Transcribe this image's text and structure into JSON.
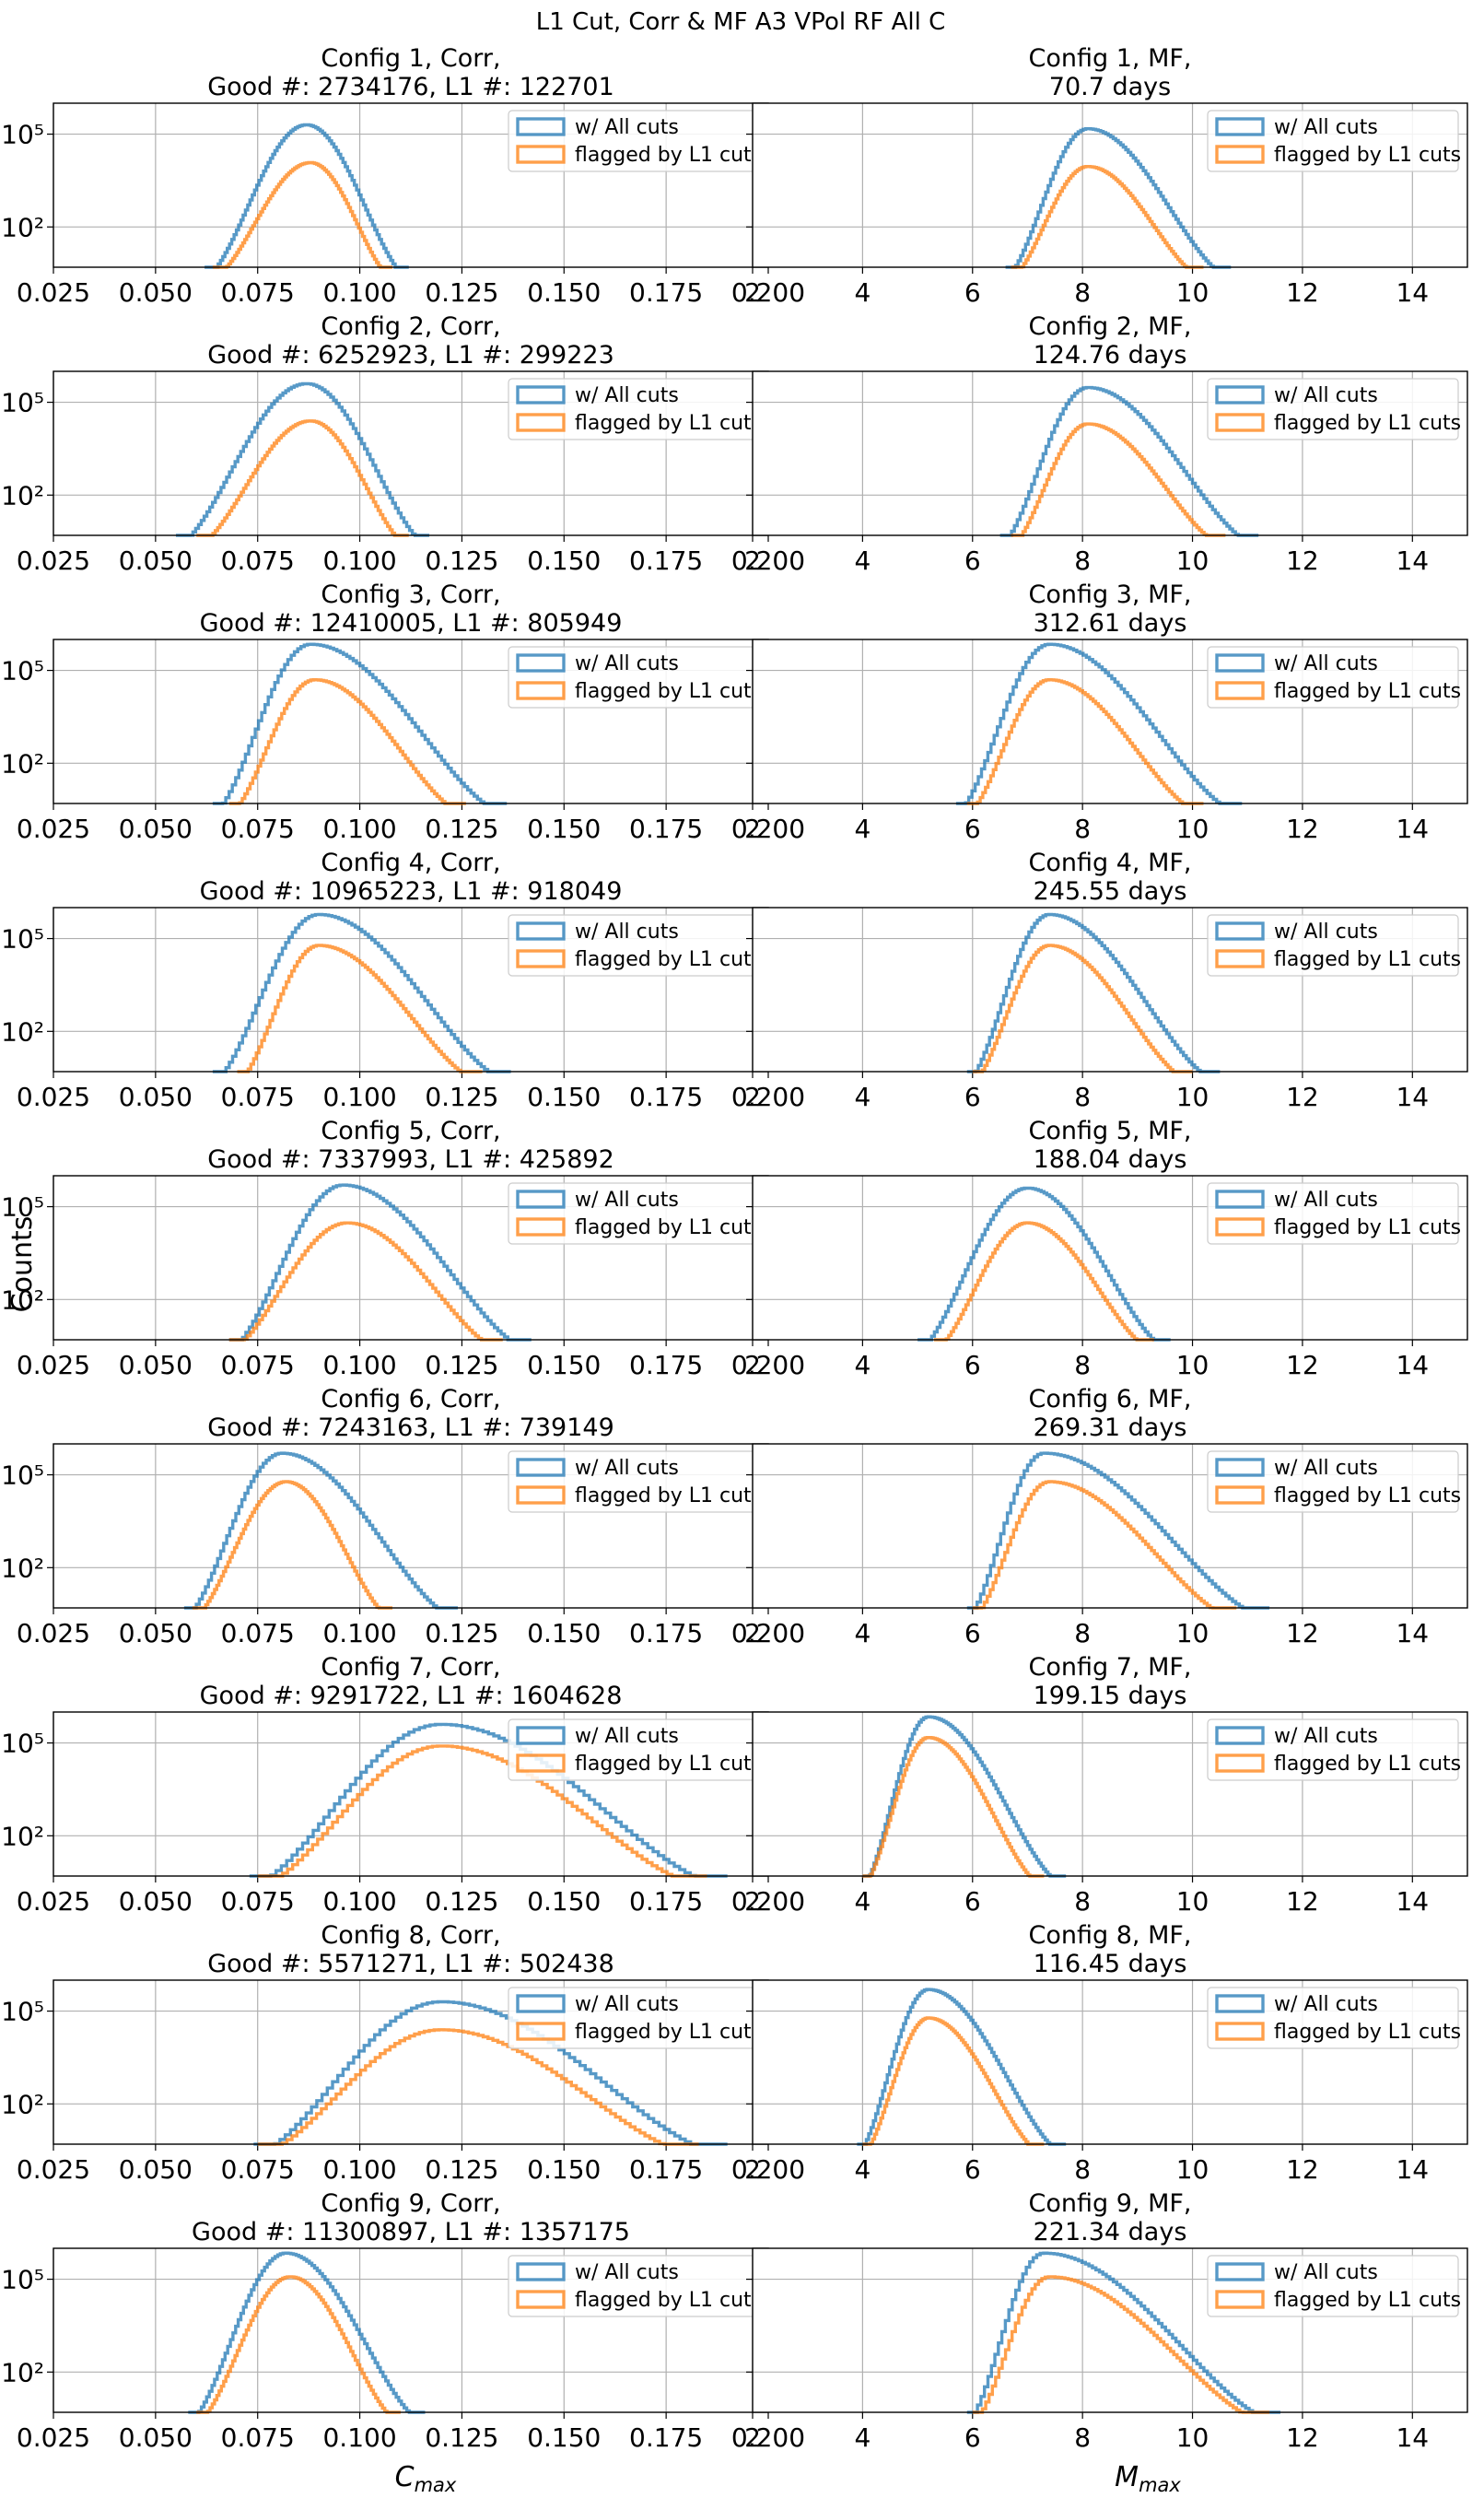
{
  "figure": {
    "suptitle": "L1 Cut, Corr & MF A3 VPol RF All C",
    "ylabel": "Counts",
    "xlabel_left": "C",
    "xlabel_left_sub": "max",
    "xlabel_right": "M",
    "xlabel_right_sub": "max"
  },
  "legend": [
    "w/ All cuts",
    "flagged by L1 cuts"
  ],
  "colors": {
    "all_cuts": "#1f77b4",
    "l1": "#ff7f0e"
  },
  "chart_data": [
    {
      "type": "line",
      "panel": "Config 1 Corr",
      "title_line1": "Config 1, Corr,",
      "title_line2": "Good #: 2734176, L1 #: 122701",
      "xlim": [
        0.025,
        0.2
      ],
      "xticks": [
        "0.025",
        "0.050",
        "0.075",
        "0.100",
        "0.125",
        "0.150",
        "0.175",
        "0.200"
      ],
      "yscale": "log",
      "ylim": [
        5,
        1000000
      ],
      "yticks": [
        "10²",
        "10⁵"
      ],
      "grid": true,
      "legend_position": "upper-right",
      "series": [
        {
          "name": "w/ All cuts",
          "peak_x": 0.087,
          "peak_y": 200000,
          "x_min": 0.062,
          "x_max": 0.112
        },
        {
          "name": "flagged by L1 cuts",
          "peak_x": 0.088,
          "peak_y": 12000,
          "x_min": 0.064,
          "x_max": 0.108
        }
      ]
    },
    {
      "type": "line",
      "panel": "Config 1 MF",
      "title_line1": "Config 1, MF,",
      "title_line2": "70.7 days",
      "xlim": [
        2,
        15
      ],
      "xticks": [
        "2",
        "4",
        "6",
        "8",
        "10",
        "12",
        "14"
      ],
      "yscale": "log",
      "ylim": [
        5,
        1000000
      ],
      "yticks": [],
      "grid": true,
      "legend_position": "upper-right",
      "series": [
        {
          "name": "w/ All cuts",
          "peak_x": 8.1,
          "peak_y": 150000,
          "x_min": 6.6,
          "x_max": 10.7
        },
        {
          "name": "flagged by L1 cuts",
          "peak_x": 8.1,
          "peak_y": 9000,
          "x_min": 6.7,
          "x_max": 10.2
        }
      ]
    },
    {
      "type": "line",
      "panel": "Config 2 Corr",
      "title_line1": "Config 2, Corr,",
      "title_line2": "Good #: 6252923, L1 #: 299223",
      "xlim": [
        0.025,
        0.2
      ],
      "xticks": [
        "0.025",
        "0.050",
        "0.075",
        "0.100",
        "0.125",
        "0.150",
        "0.175",
        "0.200"
      ],
      "yscale": "log",
      "ylim": [
        5,
        1000000
      ],
      "yticks": [
        "10²",
        "10⁵"
      ],
      "grid": true,
      "legend_position": "upper-right",
      "series": [
        {
          "name": "w/ All cuts",
          "peak_x": 0.087,
          "peak_y": 400000,
          "x_min": 0.055,
          "x_max": 0.117
        },
        {
          "name": "flagged by L1 cuts",
          "peak_x": 0.088,
          "peak_y": 25000,
          "x_min": 0.06,
          "x_max": 0.112
        }
      ]
    },
    {
      "type": "line",
      "panel": "Config 2 MF",
      "title_line1": "Config 2, MF,",
      "title_line2": "124.76 days",
      "xlim": [
        2,
        15
      ],
      "xticks": [
        "2",
        "4",
        "6",
        "8",
        "10",
        "12",
        "14"
      ],
      "yscale": "log",
      "ylim": [
        5,
        1000000
      ],
      "yticks": [],
      "grid": true,
      "legend_position": "upper-right",
      "series": [
        {
          "name": "w/ All cuts",
          "peak_x": 8.1,
          "peak_y": 300000,
          "x_min": 6.5,
          "x_max": 11.2
        },
        {
          "name": "flagged by L1 cuts",
          "peak_x": 8.1,
          "peak_y": 20000,
          "x_min": 6.7,
          "x_max": 10.6
        }
      ]
    },
    {
      "type": "line",
      "panel": "Config 3 Corr",
      "title_line1": "Config 3, Corr,",
      "title_line2": "Good #: 12410005, L1 #: 805949",
      "xlim": [
        0.025,
        0.2
      ],
      "xticks": [
        "0.025",
        "0.050",
        "0.075",
        "0.100",
        "0.125",
        "0.150",
        "0.175",
        "0.200"
      ],
      "yscale": "log",
      "ylim": [
        5,
        1000000
      ],
      "yticks": [
        "10²",
        "10⁵"
      ],
      "grid": true,
      "legend_position": "upper-right",
      "series": [
        {
          "name": "w/ All cuts",
          "peak_x": 0.088,
          "peak_y": 700000,
          "x_min": 0.064,
          "x_max": 0.136
        },
        {
          "name": "flagged by L1 cuts",
          "peak_x": 0.089,
          "peak_y": 50000,
          "x_min": 0.068,
          "x_max": 0.126
        }
      ]
    },
    {
      "type": "line",
      "panel": "Config 3 MF",
      "title_line1": "Config 3, MF,",
      "title_line2": "312.61 days",
      "xlim": [
        2,
        15
      ],
      "xticks": [
        "2",
        "4",
        "6",
        "8",
        "10",
        "12",
        "14"
      ],
      "yscale": "log",
      "ylim": [
        5,
        1000000
      ],
      "yticks": [],
      "grid": true,
      "legend_position": "upper-right",
      "series": [
        {
          "name": "w/ All cuts",
          "peak_x": 7.4,
          "peak_y": 700000,
          "x_min": 5.7,
          "x_max": 10.9
        },
        {
          "name": "flagged by L1 cuts",
          "peak_x": 7.4,
          "peak_y": 50000,
          "x_min": 5.9,
          "x_max": 10.2
        }
      ]
    },
    {
      "type": "line",
      "panel": "Config 4 Corr",
      "title_line1": "Config 4, Corr,",
      "title_line2": "Good #: 10965223, L1 #: 918049",
      "xlim": [
        0.025,
        0.2
      ],
      "xticks": [
        "0.025",
        "0.050",
        "0.075",
        "0.100",
        "0.125",
        "0.150",
        "0.175",
        "0.200"
      ],
      "yscale": "log",
      "ylim": [
        5,
        1000000
      ],
      "yticks": [
        "10²",
        "10⁵"
      ],
      "grid": true,
      "legend_position": "upper-right",
      "series": [
        {
          "name": "w/ All cuts",
          "peak_x": 0.09,
          "peak_y": 600000,
          "x_min": 0.064,
          "x_max": 0.137
        },
        {
          "name": "flagged by L1 cuts",
          "peak_x": 0.09,
          "peak_y": 60000,
          "x_min": 0.07,
          "x_max": 0.13
        }
      ]
    },
    {
      "type": "line",
      "panel": "Config 4 MF",
      "title_line1": "Config 4, MF,",
      "title_line2": "245.55 days",
      "xlim": [
        2,
        15
      ],
      "xticks": [
        "2",
        "4",
        "6",
        "8",
        "10",
        "12",
        "14"
      ],
      "yscale": "log",
      "ylim": [
        5,
        1000000
      ],
      "yticks": [],
      "grid": true,
      "legend_position": "upper-right",
      "series": [
        {
          "name": "w/ All cuts",
          "peak_x": 7.4,
          "peak_y": 600000,
          "x_min": 5.9,
          "x_max": 10.5
        },
        {
          "name": "flagged by L1 cuts",
          "peak_x": 7.4,
          "peak_y": 60000,
          "x_min": 6.0,
          "x_max": 10.0
        }
      ]
    },
    {
      "type": "line",
      "panel": "Config 5 Corr",
      "title_line1": "Config 5, Corr,",
      "title_line2": "Good #: 7337993, L1 #: 425892",
      "xlim": [
        0.025,
        0.2
      ],
      "xticks": [
        "0.025",
        "0.050",
        "0.075",
        "0.100",
        "0.125",
        "0.150",
        "0.175",
        "0.200"
      ],
      "yscale": "log",
      "ylim": [
        5,
        1000000
      ],
      "yticks": [
        "10²",
        "10⁵"
      ],
      "grid": true,
      "legend_position": "upper-right",
      "series": [
        {
          "name": "w/ All cuts",
          "peak_x": 0.096,
          "peak_y": 500000,
          "x_min": 0.068,
          "x_max": 0.142
        },
        {
          "name": "flagged by L1 cuts",
          "peak_x": 0.097,
          "peak_y": 30000,
          "x_min": 0.068,
          "x_max": 0.135
        }
      ]
    },
    {
      "type": "line",
      "panel": "Config 5 MF",
      "title_line1": "Config 5, MF,",
      "title_line2": "188.04 days",
      "xlim": [
        2,
        15
      ],
      "xticks": [
        "2",
        "4",
        "6",
        "8",
        "10",
        "12",
        "14"
      ],
      "yscale": "log",
      "ylim": [
        5,
        1000000
      ],
      "yticks": [],
      "grid": true,
      "legend_position": "upper-right",
      "series": [
        {
          "name": "w/ All cuts",
          "peak_x": 7.0,
          "peak_y": 400000,
          "x_min": 5.0,
          "x_max": 9.6
        },
        {
          "name": "flagged by L1 cuts",
          "peak_x": 7.0,
          "peak_y": 30000,
          "x_min": 5.3,
          "x_max": 9.3
        }
      ]
    },
    {
      "type": "line",
      "panel": "Config 6 Corr",
      "title_line1": "Config 6, Corr,",
      "title_line2": "Good #: 7243163, L1 #: 739149",
      "xlim": [
        0.025,
        0.2
      ],
      "xticks": [
        "0.025",
        "0.050",
        "0.075",
        "0.100",
        "0.125",
        "0.150",
        "0.175",
        "0.200"
      ],
      "yscale": "log",
      "ylim": [
        5,
        1000000
      ],
      "yticks": [
        "10²",
        "10⁵"
      ],
      "grid": true,
      "legend_position": "upper-right",
      "series": [
        {
          "name": "w/ All cuts",
          "peak_x": 0.081,
          "peak_y": 500000,
          "x_min": 0.057,
          "x_max": 0.124
        },
        {
          "name": "flagged by L1 cuts",
          "peak_x": 0.082,
          "peak_y": 60000,
          "x_min": 0.059,
          "x_max": 0.108
        }
      ]
    },
    {
      "type": "line",
      "panel": "Config 6 MF",
      "title_line1": "Config 6, MF,",
      "title_line2": "269.31 days",
      "xlim": [
        2,
        15
      ],
      "xticks": [
        "2",
        "4",
        "6",
        "8",
        "10",
        "12",
        "14"
      ],
      "yscale": "log",
      "ylim": [
        5,
        1000000
      ],
      "yticks": [],
      "grid": true,
      "legend_position": "upper-right",
      "series": [
        {
          "name": "w/ All cuts",
          "peak_x": 7.3,
          "peak_y": 500000,
          "x_min": 5.9,
          "x_max": 11.4
        },
        {
          "name": "flagged by L1 cuts",
          "peak_x": 7.4,
          "peak_y": 60000,
          "x_min": 6.0,
          "x_max": 10.8
        }
      ]
    },
    {
      "type": "line",
      "panel": "Config 7 Corr",
      "title_line1": "Config 7, Corr,",
      "title_line2": "Good #: 9291722, L1 #: 1604628",
      "xlim": [
        0.025,
        0.2
      ],
      "xticks": [
        "0.025",
        "0.050",
        "0.075",
        "0.100",
        "0.125",
        "0.150",
        "0.175",
        "0.200"
      ],
      "yscale": "log",
      "ylim": [
        5,
        1000000
      ],
      "yticks": [
        "10²",
        "10⁵"
      ],
      "grid": true,
      "legend_position": "upper-right",
      "series": [
        {
          "name": "w/ All cuts",
          "peak_x": 0.12,
          "peak_y": 400000,
          "x_min": 0.073,
          "x_max": 0.19
        },
        {
          "name": "flagged by L1 cuts",
          "peak_x": 0.12,
          "peak_y": 80000,
          "x_min": 0.075,
          "x_max": 0.185
        }
      ]
    },
    {
      "type": "line",
      "panel": "Config 7 MF",
      "title_line1": "Config 7, MF,",
      "title_line2": "199.15 days",
      "xlim": [
        2,
        15
      ],
      "xticks": [
        "2",
        "4",
        "6",
        "8",
        "10",
        "12",
        "14"
      ],
      "yscale": "log",
      "ylim": [
        5,
        1000000
      ],
      "yticks": [],
      "grid": true,
      "legend_position": "upper-right",
      "series": [
        {
          "name": "w/ All cuts",
          "peak_x": 5.2,
          "peak_y": 700000,
          "x_min": 4.0,
          "x_max": 7.7
        },
        {
          "name": "flagged by L1 cuts",
          "peak_x": 5.2,
          "peak_y": 150000,
          "x_min": 4.0,
          "x_max": 7.3
        }
      ]
    },
    {
      "type": "line",
      "panel": "Config 8 Corr",
      "title_line1": "Config 8, Corr,",
      "title_line2": "Good #: 5571271, L1 #: 502438",
      "xlim": [
        0.025,
        0.2
      ],
      "xticks": [
        "0.025",
        "0.050",
        "0.075",
        "0.100",
        "0.125",
        "0.150",
        "0.175",
        "0.200"
      ],
      "yscale": "log",
      "ylim": [
        5,
        1000000
      ],
      "yticks": [
        "10²",
        "10⁵"
      ],
      "grid": true,
      "legend_position": "upper-right",
      "series": [
        {
          "name": "w/ All cuts",
          "peak_x": 0.12,
          "peak_y": 200000,
          "x_min": 0.074,
          "x_max": 0.19
        },
        {
          "name": "flagged by L1 cuts",
          "peak_x": 0.12,
          "peak_y": 25000,
          "x_min": 0.075,
          "x_max": 0.183
        }
      ]
    },
    {
      "type": "line",
      "panel": "Config 8 MF",
      "title_line1": "Config 8, MF,",
      "title_line2": "116.45 days",
      "xlim": [
        2,
        15
      ],
      "xticks": [
        "2",
        "4",
        "6",
        "8",
        "10",
        "12",
        "14"
      ],
      "yscale": "log",
      "ylim": [
        5,
        1000000
      ],
      "yticks": [],
      "grid": true,
      "legend_position": "upper-right",
      "series": [
        {
          "name": "w/ All cuts",
          "peak_x": 5.2,
          "peak_y": 500000,
          "x_min": 3.9,
          "x_max": 7.7
        },
        {
          "name": "flagged by L1 cuts",
          "peak_x": 5.2,
          "peak_y": 60000,
          "x_min": 4.0,
          "x_max": 7.3
        }
      ]
    },
    {
      "type": "line",
      "panel": "Config 9 Corr",
      "title_line1": "Config 9, Corr,",
      "title_line2": "Good #: 11300897, L1 #: 1357175",
      "xlim": [
        0.025,
        0.2
      ],
      "xticks": [
        "0.025",
        "0.050",
        "0.075",
        "0.100",
        "0.125",
        "0.150",
        "0.175",
        "0.200"
      ],
      "yscale": "log",
      "ylim": [
        5,
        1000000
      ],
      "yticks": [
        "10²",
        "10⁵"
      ],
      "grid": true,
      "legend_position": "upper-right",
      "series": [
        {
          "name": "w/ All cuts",
          "peak_x": 0.082,
          "peak_y": 700000,
          "x_min": 0.058,
          "x_max": 0.116
        },
        {
          "name": "flagged by L1 cuts",
          "peak_x": 0.083,
          "peak_y": 120000,
          "x_min": 0.06,
          "x_max": 0.11
        }
      ]
    },
    {
      "type": "line",
      "panel": "Config 9 MF",
      "title_line1": "Config 9, MF,",
      "title_line2": "221.34 days",
      "xlim": [
        2,
        15
      ],
      "xticks": [
        "2",
        "4",
        "6",
        "8",
        "10",
        "12",
        "14"
      ],
      "yscale": "log",
      "ylim": [
        5,
        1000000
      ],
      "yticks": [],
      "grid": true,
      "legend_position": "upper-right",
      "series": [
        {
          "name": "w/ All cuts",
          "peak_x": 7.3,
          "peak_y": 700000,
          "x_min": 5.9,
          "x_max": 11.6
        },
        {
          "name": "flagged by L1 cuts",
          "peak_x": 7.4,
          "peak_y": 120000,
          "x_min": 6.0,
          "x_max": 11.4
        }
      ]
    }
  ]
}
